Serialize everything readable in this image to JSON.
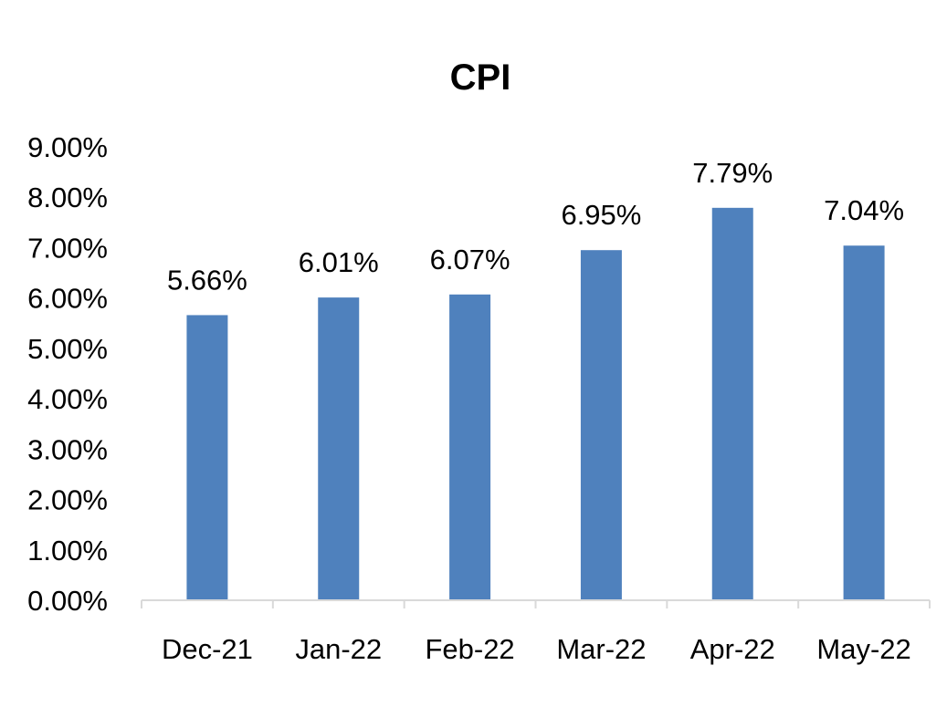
{
  "chart_data": {
    "type": "bar",
    "title": "CPI",
    "categories": [
      "Dec-21",
      "Jan-22",
      "Feb-22",
      "Mar-22",
      "Apr-22",
      "May-22"
    ],
    "values": [
      5.66,
      6.01,
      6.07,
      6.95,
      7.79,
      7.04
    ],
    "data_labels": [
      "5.66%",
      "6.01%",
      "6.07%",
      "6.95%",
      "7.79%",
      "7.04%"
    ],
    "y_ticks": [
      "0.00%",
      "1.00%",
      "2.00%",
      "3.00%",
      "4.00%",
      "5.00%",
      "6.00%",
      "7.00%",
      "8.00%",
      "9.00%"
    ],
    "ylim": [
      0,
      9
    ],
    "xlabel": "",
    "ylabel": "",
    "grid": false,
    "legend": "none",
    "bar_color": "#4f81bd"
  }
}
